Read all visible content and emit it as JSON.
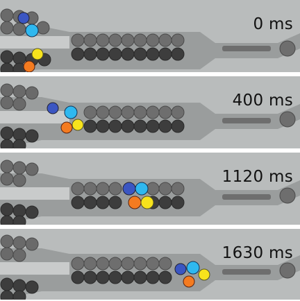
{
  "frames": [
    {
      "time": "0 ms"
    },
    {
      "time": "400 ms"
    },
    {
      "time": "1120 ms"
    },
    {
      "time": "1630 ms"
    }
  ],
  "colors": {
    "background": "#b9bcbc",
    "droplet_light": "#6b6b6b",
    "droplet_dark": "#3c3c3c",
    "dark_blue": "#3b56c2",
    "light_blue": "#2fb8ef",
    "yellow": "#f7e31c",
    "orange": "#f47b20"
  }
}
